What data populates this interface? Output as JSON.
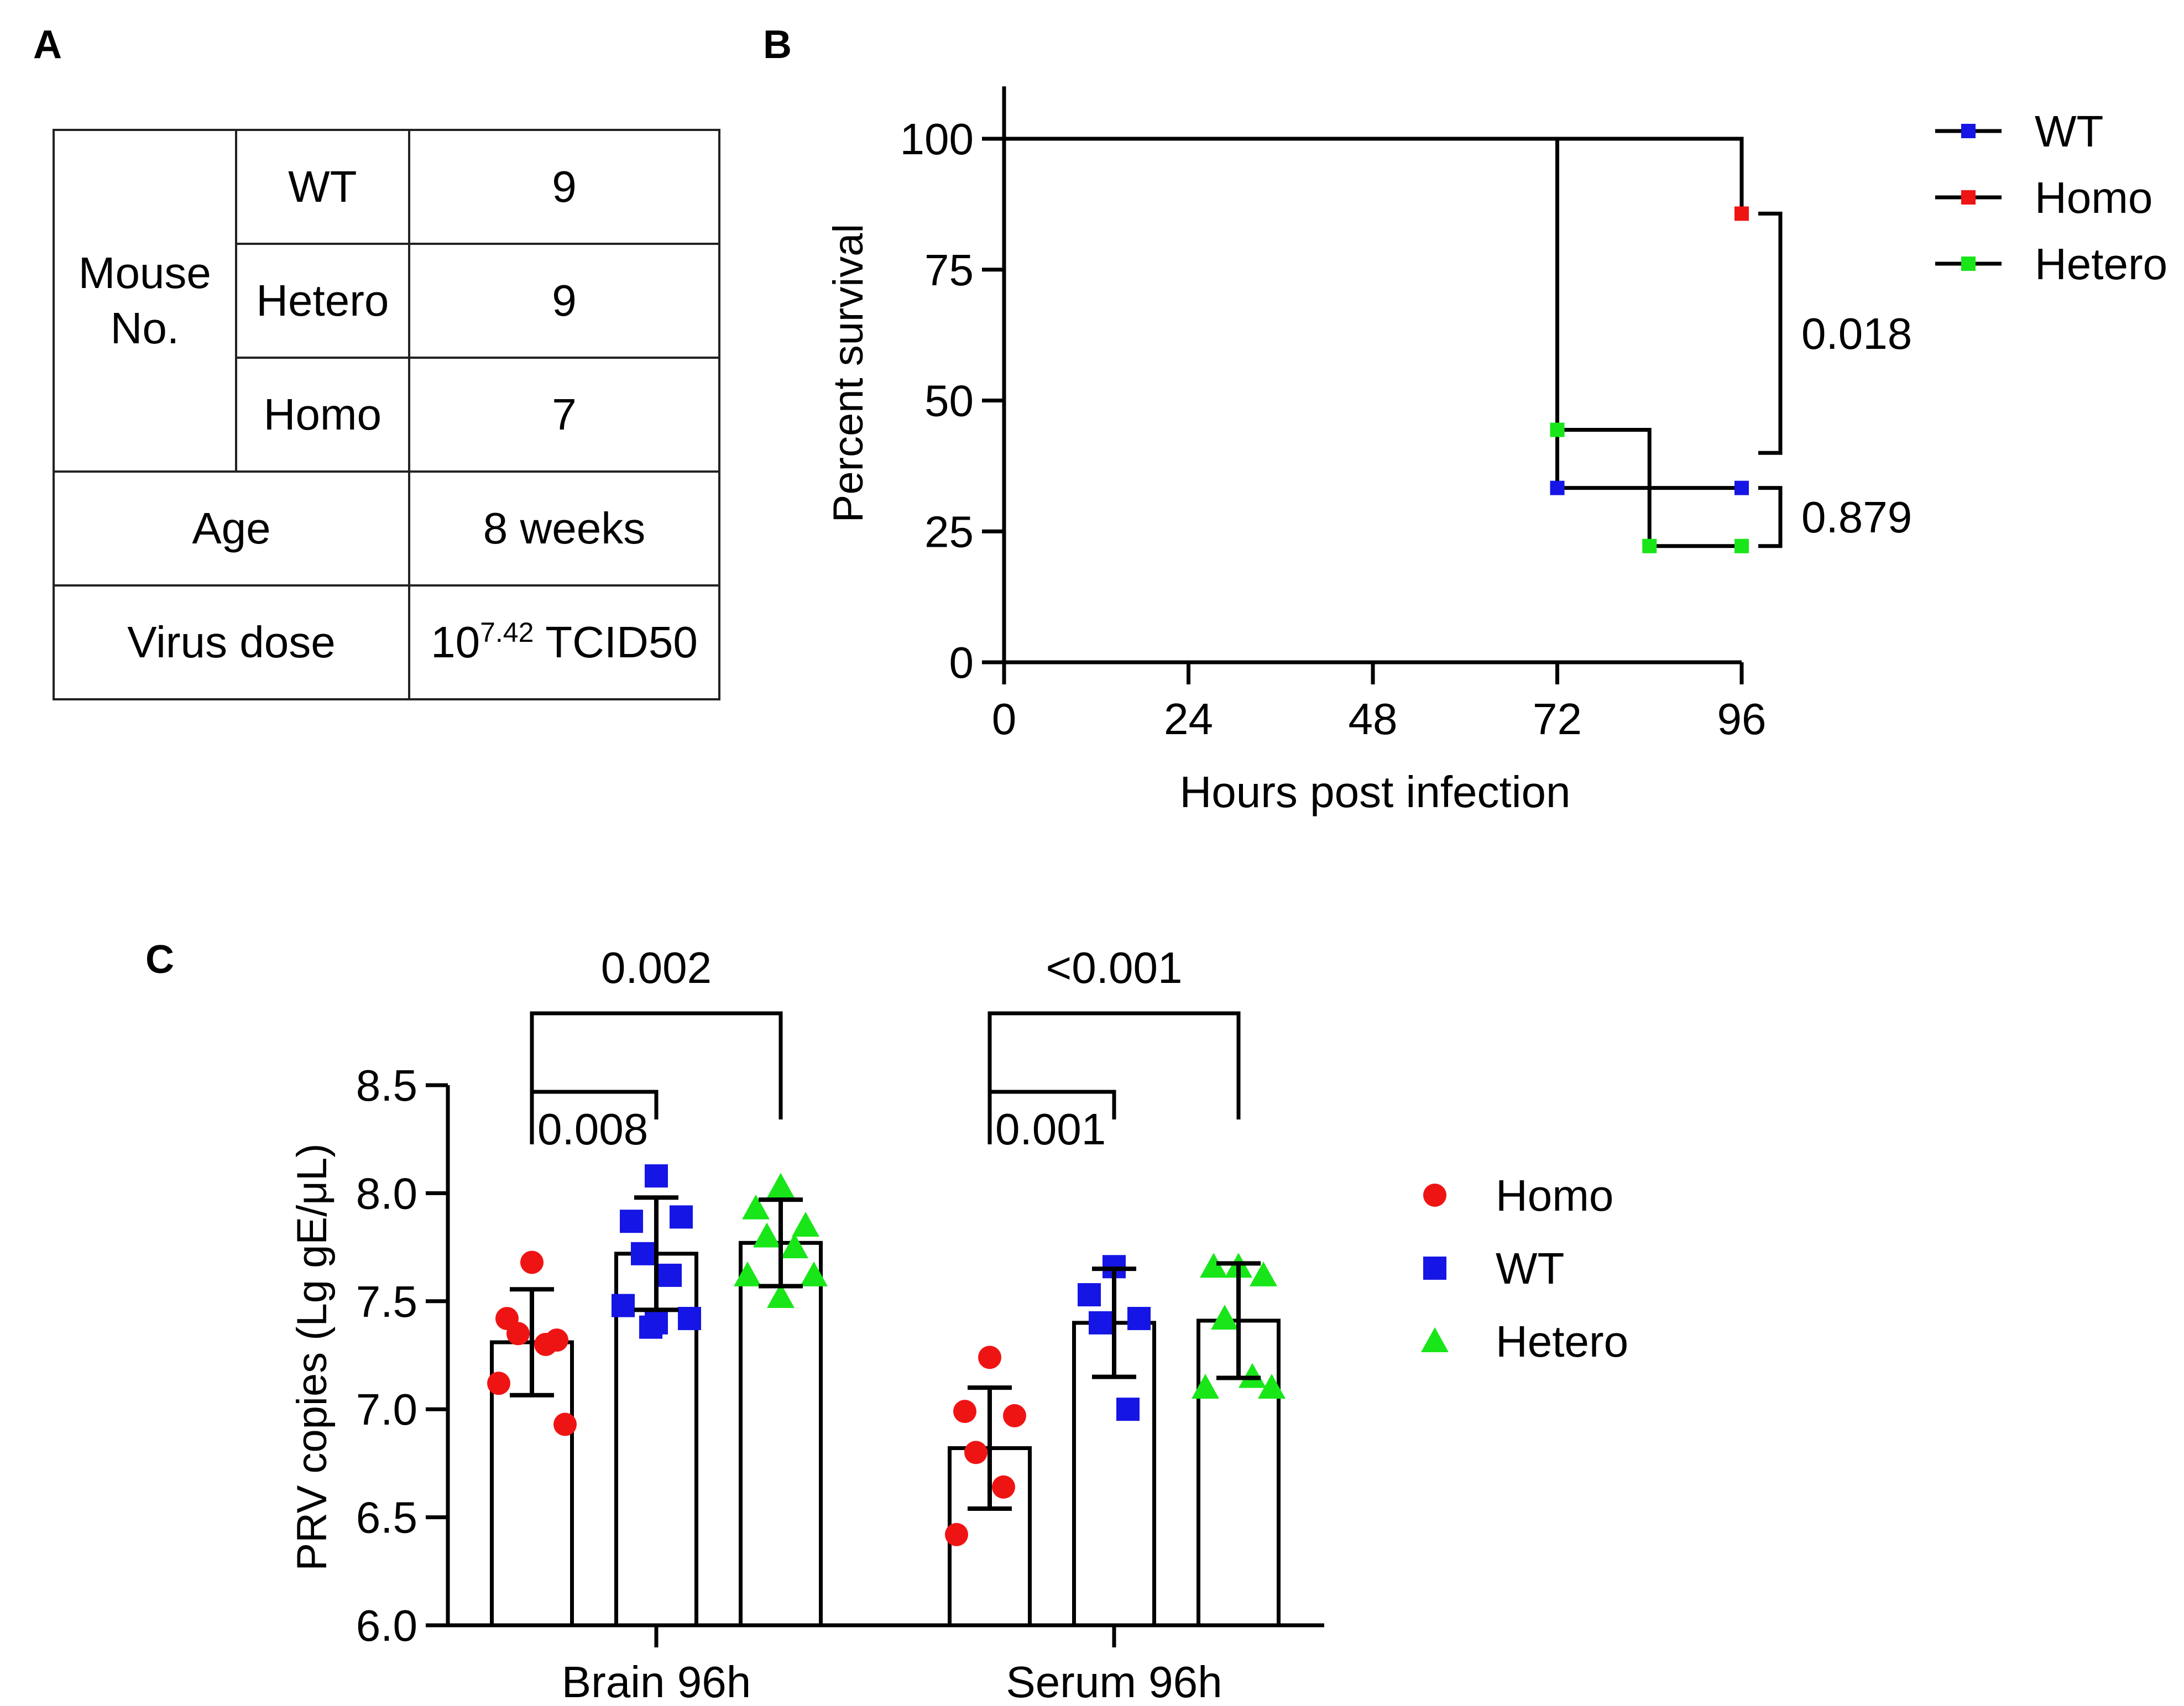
{
  "panels": {
    "a": "A",
    "b": "B",
    "c": "C"
  },
  "table": {
    "mouse_no_label": "Mouse No.",
    "rows": [
      {
        "group": "WT",
        "value": "9"
      },
      {
        "group": "Hetero",
        "value": "9"
      },
      {
        "group": "Homo",
        "value": "7"
      }
    ],
    "age_label": "Age",
    "age_value": "8 weeks",
    "dose_label": "Virus dose",
    "dose_base": "10",
    "dose_exponent": "7.42",
    "dose_unit": "TCID50"
  },
  "colors": {
    "wt": "#1515e6",
    "homo": "#ef1414",
    "hetero": "#19e619",
    "line": "#000000"
  },
  "chart_data": [
    {
      "type": "line",
      "subtype": "kaplan-meier",
      "xlabel": "Hours post infection",
      "ylabel": "Percent survival",
      "xlim": [
        0,
        96
      ],
      "ylim": [
        0,
        110
      ],
      "xticks": [
        "0",
        "24",
        "48",
        "72",
        "96"
      ],
      "yticks": [
        "0",
        "25",
        "50",
        "75",
        "100"
      ],
      "series": [
        {
          "name": "WT",
          "steps": [
            [
              0,
              100
            ],
            [
              72,
              100
            ],
            [
              72,
              33.3
            ],
            [
              96,
              33.3
            ]
          ],
          "markers": [
            [
              72,
              33.3
            ],
            [
              96,
              33.3
            ]
          ]
        },
        {
          "name": "Homo",
          "steps": [
            [
              0,
              100
            ],
            [
              96,
              100
            ],
            [
              96,
              85.7
            ]
          ],
          "markers": [
            [
              96,
              85.7
            ]
          ]
        },
        {
          "name": "Hetero",
          "steps": [
            [
              0,
              100
            ],
            [
              72,
              100
            ],
            [
              72,
              44.4
            ],
            [
              84,
              44.4
            ],
            [
              84,
              22.2
            ],
            [
              96,
              22.2
            ]
          ],
          "markers": [
            [
              72,
              44.4
            ],
            [
              84,
              22.2
            ],
            [
              96,
              22.2
            ]
          ]
        }
      ],
      "legend": [
        "WT",
        "Homo",
        "Hetero"
      ],
      "legend_position": "right",
      "annotations": [
        {
          "label": "0.018",
          "y_from": 40,
          "y_to": 85.7
        },
        {
          "label": "0.879",
          "y_from": 22.2,
          "y_to": 33.3
        }
      ]
    },
    {
      "type": "bar",
      "ylabel": "PRV copies (Lg gE/μL)",
      "ylim": [
        6.0,
        8.5
      ],
      "yticks": [
        "6.0",
        "6.5",
        "7.0",
        "7.5",
        "8.0",
        "8.5"
      ],
      "categories": [
        "Brain 96h",
        "Serum 96h"
      ],
      "series": [
        {
          "name": "Homo",
          "values": [
            7.31,
            6.82
          ],
          "sd": [
            0.245,
            0.28
          ],
          "points": [
            [
              7.68,
              7.42,
              7.32,
              7.35,
              7.3,
              7.12,
              6.93
            ],
            [
              7.24,
              6.99,
              6.97,
              6.8,
              6.64,
              6.42
            ]
          ]
        },
        {
          "name": "WT",
          "values": [
            7.72,
            7.4
          ],
          "sd": [
            0.26,
            0.25
          ],
          "points": [
            [
              8.08,
              7.87,
              7.89,
              7.72,
              7.62,
              7.48,
              7.42,
              7.4,
              7.38
            ],
            [
              7.66,
              7.53,
              7.42,
              7.4,
              7.0
            ]
          ]
        },
        {
          "name": "Hetero",
          "values": [
            7.77,
            7.41
          ],
          "sd": [
            0.2,
            0.265
          ],
          "points": [
            [
              8.03,
              7.93,
              7.85,
              7.8,
              7.75,
              7.62,
              7.62,
              7.52
            ],
            [
              7.66,
              7.66,
              7.62,
              7.42,
              7.15,
              7.1,
              7.1
            ]
          ]
        }
      ],
      "legend": [
        "Homo",
        "WT",
        "Hetero"
      ],
      "legend_position": "right",
      "annotations": [
        {
          "category": "Brain 96h",
          "from": "Homo",
          "to": "WT",
          "label": "0.008"
        },
        {
          "category": "Brain 96h",
          "from": "Homo",
          "to": "Hetero",
          "label": "0.002"
        },
        {
          "category": "Serum 96h",
          "from": "Homo",
          "to": "WT",
          "label": "0.001"
        },
        {
          "category": "Serum 96h",
          "from": "Homo",
          "to": "Hetero",
          "label": "<0.001"
        }
      ]
    }
  ]
}
